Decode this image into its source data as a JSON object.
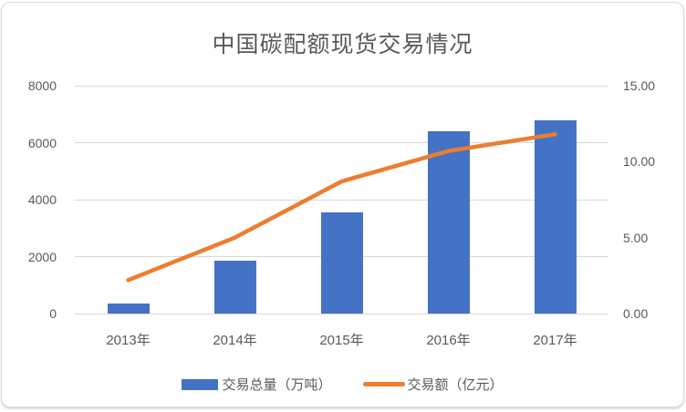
{
  "chart_data": {
    "type": "bar+line",
    "title": "中国碳配额现货交易情况",
    "categories": [
      "2013年",
      "2014年",
      "2015年",
      "2016年",
      "2017年"
    ],
    "series": [
      {
        "name": "交易总量（万吨）",
        "type": "bar",
        "axis": "left",
        "color": "#4472C4",
        "values": [
          360,
          1850,
          3550,
          6400,
          6780
        ]
      },
      {
        "name": "交易额（亿元）",
        "type": "line",
        "axis": "right",
        "color": "#ED7D31",
        "values": [
          2.2,
          5.0,
          8.7,
          10.7,
          11.8
        ]
      }
    ],
    "left_axis": {
      "min": 0,
      "max": 8000,
      "ticks": [
        0,
        2000,
        4000,
        6000,
        8000
      ],
      "tick_labels": [
        "0",
        "2000",
        "4000",
        "6000",
        "8000"
      ]
    },
    "right_axis": {
      "min": 0,
      "max": 15,
      "ticks": [
        0,
        5,
        10,
        15
      ],
      "tick_labels": [
        "0.00",
        "5.00",
        "10.00",
        "15.00"
      ]
    },
    "grid": true,
    "legend_position": "bottom",
    "colors": {
      "bar": "#4472C4",
      "line": "#ED7D31",
      "grid": "#D9D9D9",
      "text": "#595959",
      "background": "#FFFFFF",
      "card_border": "#D9D9D9"
    }
  }
}
